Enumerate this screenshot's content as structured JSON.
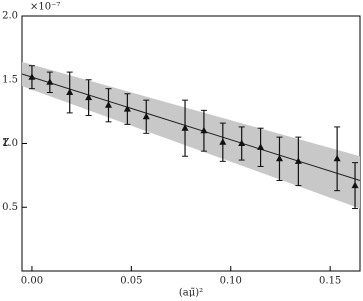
{
  "chart_data": {
    "type": "errorbar",
    "y_label": "Z",
    "x_label": "(aμ̃)²",
    "y_offset_label": "×10⁻⁷",
    "x": [
      0.0,
      0.009,
      0.019,
      0.0285,
      0.0385,
      0.048,
      0.0575,
      0.077,
      0.0865,
      0.096,
      0.1055,
      0.115,
      0.1245,
      0.134,
      0.1535,
      0.1625
    ],
    "values": [
      1.52,
      1.48,
      1.4,
      1.36,
      1.3,
      1.27,
      1.21,
      1.12,
      1.1,
      1.01,
      1.0,
      0.97,
      0.88,
      0.86,
      0.88,
      0.67
    ],
    "errors": [
      0.09,
      0.08,
      0.16,
      0.14,
      0.13,
      0.12,
      0.13,
      0.22,
      0.16,
      0.15,
      0.13,
      0.15,
      0.17,
      0.19,
      0.25,
      0.18
    ],
    "color": "#111111",
    "fit": {
      "x": [
        -0.005,
        0.165
      ],
      "values": [
        1.545,
        0.71
      ],
      "lower": [
        1.45,
        0.49
      ],
      "upper": [
        1.64,
        0.9
      ],
      "color": "#222222",
      "band_color": "#c8c8c8"
    },
    "xlim": [
      -0.005,
      0.165
    ],
    "ylim": [
      0,
      2.0
    ],
    "xticks": [
      {
        "value": 0,
        "label": "0.00"
      },
      0.05,
      {
        "value": 0.1,
        "label": "0.10"
      },
      0.15
    ],
    "yticks": [
      0.5,
      {
        "value": 1.0,
        "label": "1.0"
      },
      1.5,
      {
        "value": 2.0,
        "label": "2.0"
      }
    ]
  }
}
